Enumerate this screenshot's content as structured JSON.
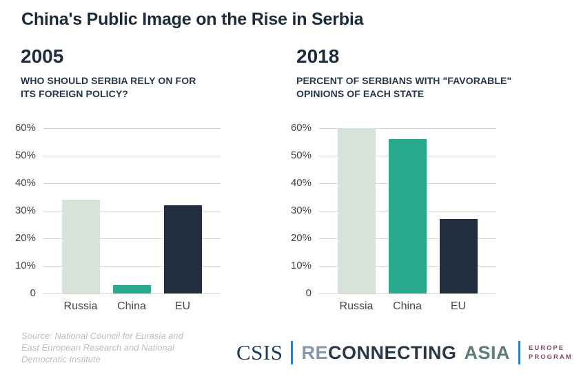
{
  "page": {
    "title": "China's Public Image on the Rise in Serbia"
  },
  "source": {
    "line1": "Source: National Council for Eurasia and",
    "line2": "East European Research and National",
    "line3": "Democratic Institute"
  },
  "branding": {
    "csis": "CSIS",
    "logo_re": "RE",
    "logo_connecting": "CONNECTING",
    "logo_asia": "ASIA",
    "program_line1": "EUROPE",
    "program_line2": "PROGRAM"
  },
  "colors": {
    "title_navy": "#1c2b3c",
    "bar_russia_pale_green": "#d7e2d8",
    "bar_china_teal": "#29aa8d",
    "bar_eu_dark_navy": "#222d3e",
    "gridline_gray": "#d9d9d9",
    "csis_navy": "#1d3a5e",
    "divider_blue": "#2e7fbe",
    "logo_re_grayblue": "#8497ab",
    "logo_connecting_navy": "#2b3747",
    "logo_asia_green": "#5c7f70",
    "program_maroon": "#8c4b55",
    "source_gray": "#bdbdbd"
  },
  "chart_data": [
    {
      "type": "bar",
      "year": "2005",
      "subtitle_line1": "WHO SHOULD SERBIA RELY ON FOR",
      "subtitle_line2": "ITS FOREIGN POLICY?",
      "categories": [
        "Russia",
        "China",
        "EU"
      ],
      "values": [
        34,
        3,
        32
      ],
      "unit": "percent",
      "ylim": [
        0,
        60
      ],
      "ytick_values": [
        60,
        50,
        40,
        30,
        20,
        10,
        0
      ],
      "yticks": [
        "60%",
        "50%",
        "40%",
        "30%",
        "20%",
        "10%",
        "0"
      ],
      "bar_colors": [
        "#d7e2d8",
        "#29aa8d",
        "#222d3e"
      ],
      "grid": true,
      "legend": "none"
    },
    {
      "type": "bar",
      "year": "2018",
      "subtitle_line1": "PERCENT OF SERBIANS WITH \"FAVORABLE\"",
      "subtitle_line2": "OPINIONS OF EACH STATE",
      "categories": [
        "Russia",
        "China",
        "EU"
      ],
      "values": [
        60,
        56,
        27
      ],
      "unit": "percent",
      "ylim": [
        0,
        60
      ],
      "ytick_values": [
        60,
        50,
        40,
        30,
        20,
        10,
        0
      ],
      "yticks": [
        "60%",
        "50%",
        "40%",
        "30%",
        "20%",
        "10%",
        "0"
      ],
      "bar_colors": [
        "#d7e2d8",
        "#29aa8d",
        "#222d3e"
      ],
      "grid": true,
      "legend": "none"
    }
  ]
}
